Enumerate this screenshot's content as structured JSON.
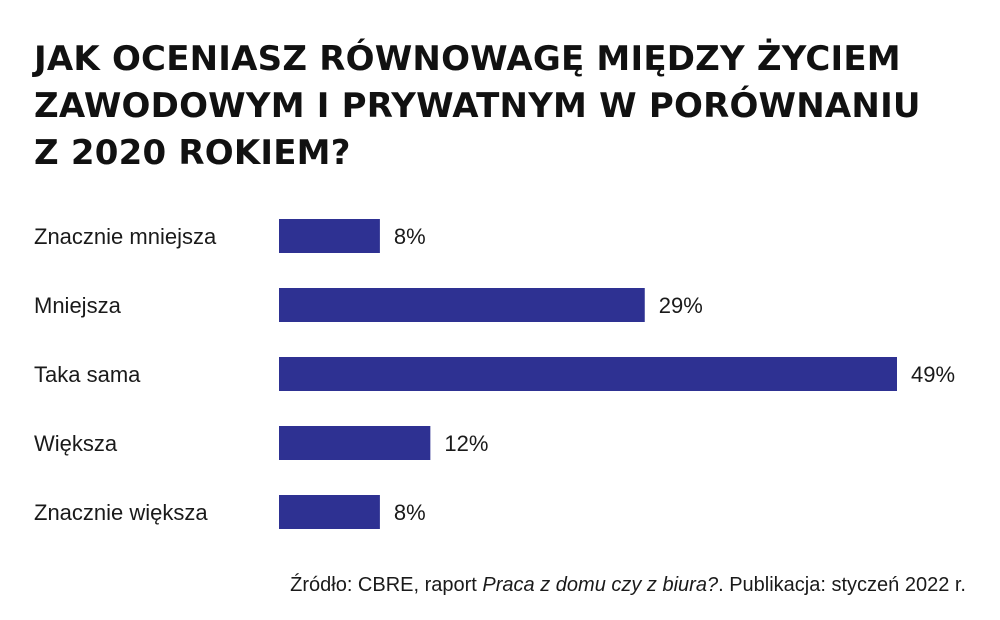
{
  "title_lines": [
    "JAK OCENIASZ RÓWNOWAGĘ MIĘDZY ŻYCIEM",
    "ZAWODOWYM I PRYWATNYM W PORÓWNANIU",
    "Z 2020 ROKIEM?"
  ],
  "source": {
    "prefix": "Źródło: CBRE, raport ",
    "report": "Praca z domu czy z biura?",
    "suffix": ". Publikacja: styczeń 2022 r."
  },
  "chart_data": {
    "type": "bar",
    "orientation": "horizontal",
    "categories": [
      "Znacznie mniejsza",
      "Mniejsza",
      "Taka sama",
      "Większa",
      "Znacznie większa"
    ],
    "values": [
      8,
      29,
      49,
      12,
      8
    ],
    "value_labels": [
      "8%",
      "29%",
      "49%",
      "12%",
      "8%"
    ],
    "unit": "%",
    "xlim": [
      0,
      49
    ],
    "grid": false,
    "legend": "none",
    "bar_color": "#2e3192"
  }
}
